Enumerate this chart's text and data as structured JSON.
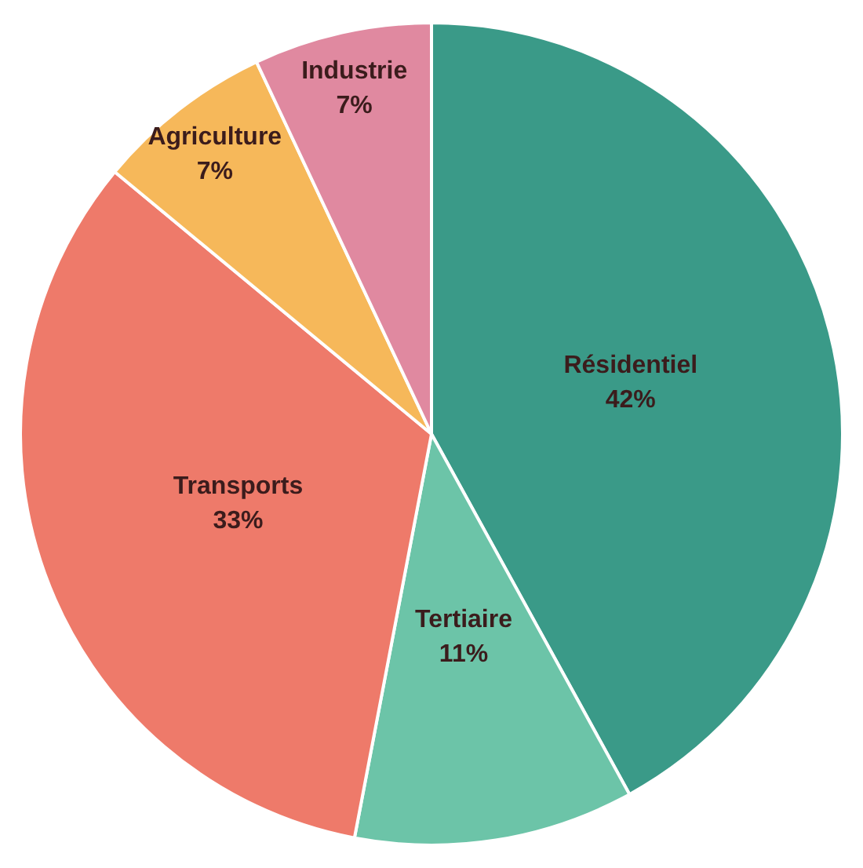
{
  "chart_data": {
    "type": "pie",
    "categories": [
      "Résidentiel",
      "Tertiaire",
      "Transports",
      "Agriculture",
      "Industrie"
    ],
    "values": [
      42,
      11,
      33,
      7,
      7
    ],
    "value_labels": [
      "42%",
      "11%",
      "33%",
      "7%",
      "7%"
    ],
    "colors": [
      "#3a9a88",
      "#6cc4a8",
      "#ee7a6a",
      "#f6b85a",
      "#e089a0"
    ]
  }
}
